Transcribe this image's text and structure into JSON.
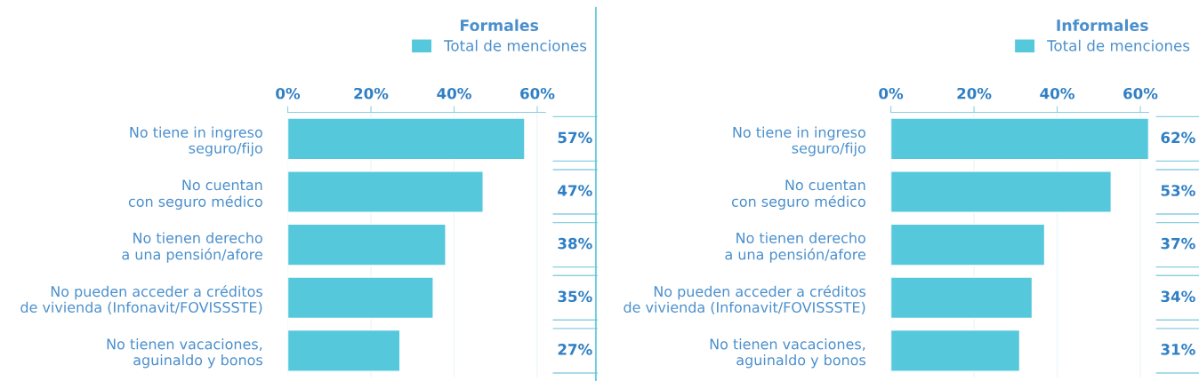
{
  "chart_data": [
    {
      "type": "bar",
      "title": "Formales",
      "orientation": "horizontal",
      "categories": [
        "No tiene in ingreso\nseguro/fijo",
        "No cuentan\ncon seguro médico",
        "No tienen derecho\na una pensión/afore",
        "No pueden acceder a créditos\nde vivienda (Infonavit/FOVISSSTE)",
        "No tienen vacaciones,\naguinaldo y bonos"
      ],
      "series": [
        {
          "name": "Total de menciones",
          "color": "#56c8dc",
          "values": [
            57,
            47,
            38,
            35,
            27
          ],
          "value_labels": [
            "57%",
            "47%",
            "38%",
            "35%",
            "27%"
          ]
        }
      ],
      "xlim": [
        0,
        62
      ],
      "xticks": [
        {
          "value": 0,
          "label": "0%"
        },
        {
          "value": 20,
          "label": "20%"
        },
        {
          "value": 40,
          "label": "40%"
        },
        {
          "value": 60,
          "label": "60%"
        }
      ],
      "grid": "x",
      "legend": "top"
    },
    {
      "type": "bar",
      "title": "Informales",
      "orientation": "horizontal",
      "categories": [
        "No tiene in ingreso\nseguro/fijo",
        "No cuentan\ncon seguro médico",
        "No tienen derecho\na una pensión/afore",
        "No pueden acceder a créditos\nde vivienda (Infonavit/FOVISSSTE)",
        "No tienen vacaciones,\naguinaldo y bonos"
      ],
      "series": [
        {
          "name": "Total de menciones",
          "color": "#56c8dc",
          "values": [
            62,
            53,
            37,
            34,
            31
          ],
          "value_labels": [
            "62%",
            "53%",
            "37%",
            "34%",
            "31%"
          ]
        }
      ],
      "xlim": [
        0,
        62
      ],
      "xticks": [
        {
          "value": 0,
          "label": "0%"
        },
        {
          "value": 20,
          "label": "20%"
        },
        {
          "value": 40,
          "label": "40%"
        },
        {
          "value": 60,
          "label": "60%"
        }
      ],
      "grid": "x",
      "legend": "top"
    }
  ]
}
